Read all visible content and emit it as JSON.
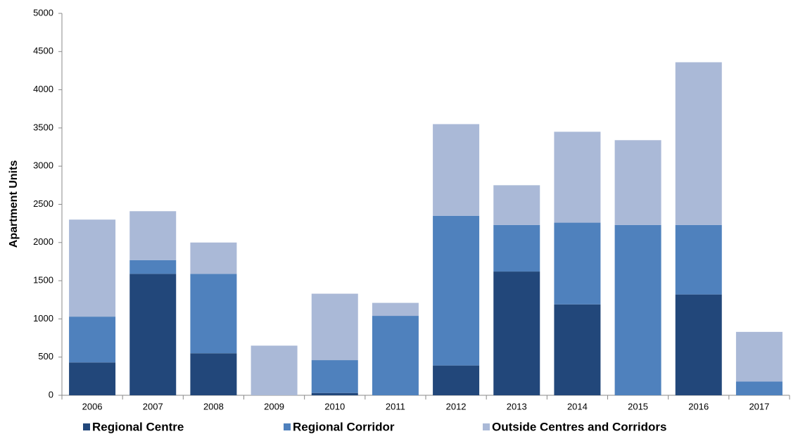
{
  "chart_data": {
    "type": "stacked_bar",
    "y_label": "Apartment Units",
    "categories": [
      "2006",
      "2007",
      "2008",
      "2009",
      "2010",
      "2011",
      "2012",
      "2013",
      "2014",
      "2015",
      "2016",
      "2017"
    ],
    "series": [
      {
        "name": "Regional Centre",
        "color": "#22477a",
        "values": [
          430,
          1590,
          550,
          0,
          30,
          0,
          390,
          1620,
          1190,
          0,
          1320,
          0
        ]
      },
      {
        "name": "Regional Corridor",
        "color": "#4f81bd",
        "values": [
          600,
          180,
          1040,
          0,
          430,
          1040,
          1960,
          610,
          1070,
          2230,
          910,
          180
        ]
      },
      {
        "name": "Outside Centres and Corridors",
        "color": "#aab9d7",
        "values": [
          1270,
          640,
          410,
          650,
          870,
          170,
          1200,
          520,
          1190,
          1110,
          2130,
          650
        ]
      }
    ],
    "ylim": [
      0,
      5000
    ],
    "yticks": [
      0,
      500,
      1000,
      1500,
      2000,
      2500,
      3000,
      3500,
      4000,
      4500,
      5000
    ]
  }
}
